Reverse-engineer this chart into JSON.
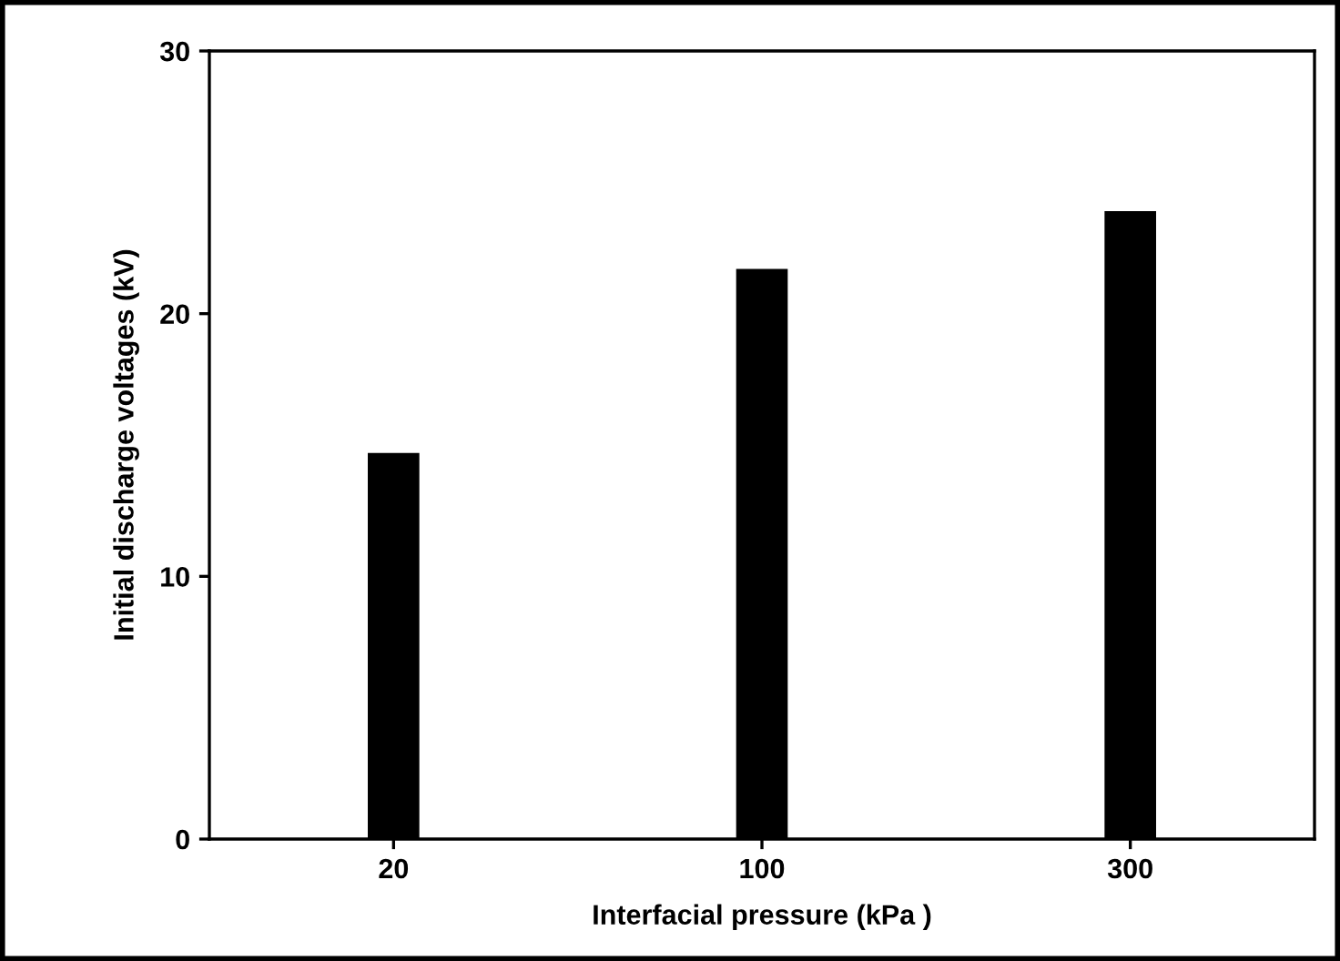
{
  "chart_data": {
    "type": "bar",
    "xlabel": "Interfacial pressure (kPa )",
    "ylabel": "Initial discharge voltages (kV)",
    "categories": [
      "20",
      "100",
      "300"
    ],
    "values": [
      14.7,
      21.7,
      23.9
    ],
    "color": "#000000",
    "ylim": [
      0,
      30
    ],
    "yticks": [
      0,
      10,
      20,
      30
    ],
    "grid": false,
    "legend": false
  }
}
